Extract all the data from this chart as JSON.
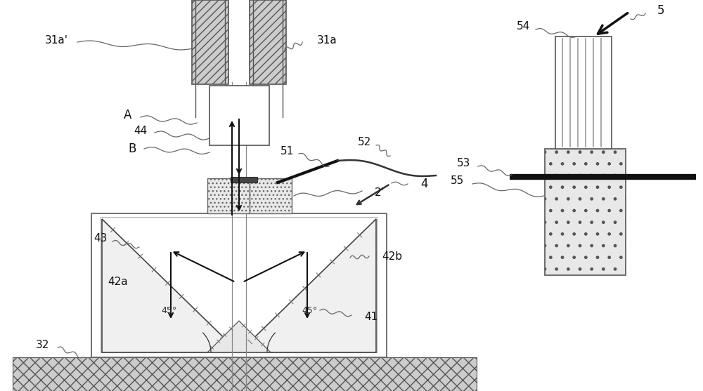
{
  "bg_color": "#ffffff",
  "lc": "#444444",
  "fw": 10.0,
  "fh": 5.57,
  "dpi": 100,
  "labels": {
    "31a_prime": "31a'",
    "31a": "31a",
    "A": "A",
    "44": "44",
    "B": "B",
    "2prime": "2'",
    "4": "4",
    "43": "43",
    "42a": "42a",
    "42b": "42b",
    "41": "41",
    "32": "32",
    "51": "51",
    "52": "52",
    "53": "53",
    "54": "54",
    "5": "5",
    "55": "55",
    "45a": "45°",
    "45b": "45°"
  }
}
